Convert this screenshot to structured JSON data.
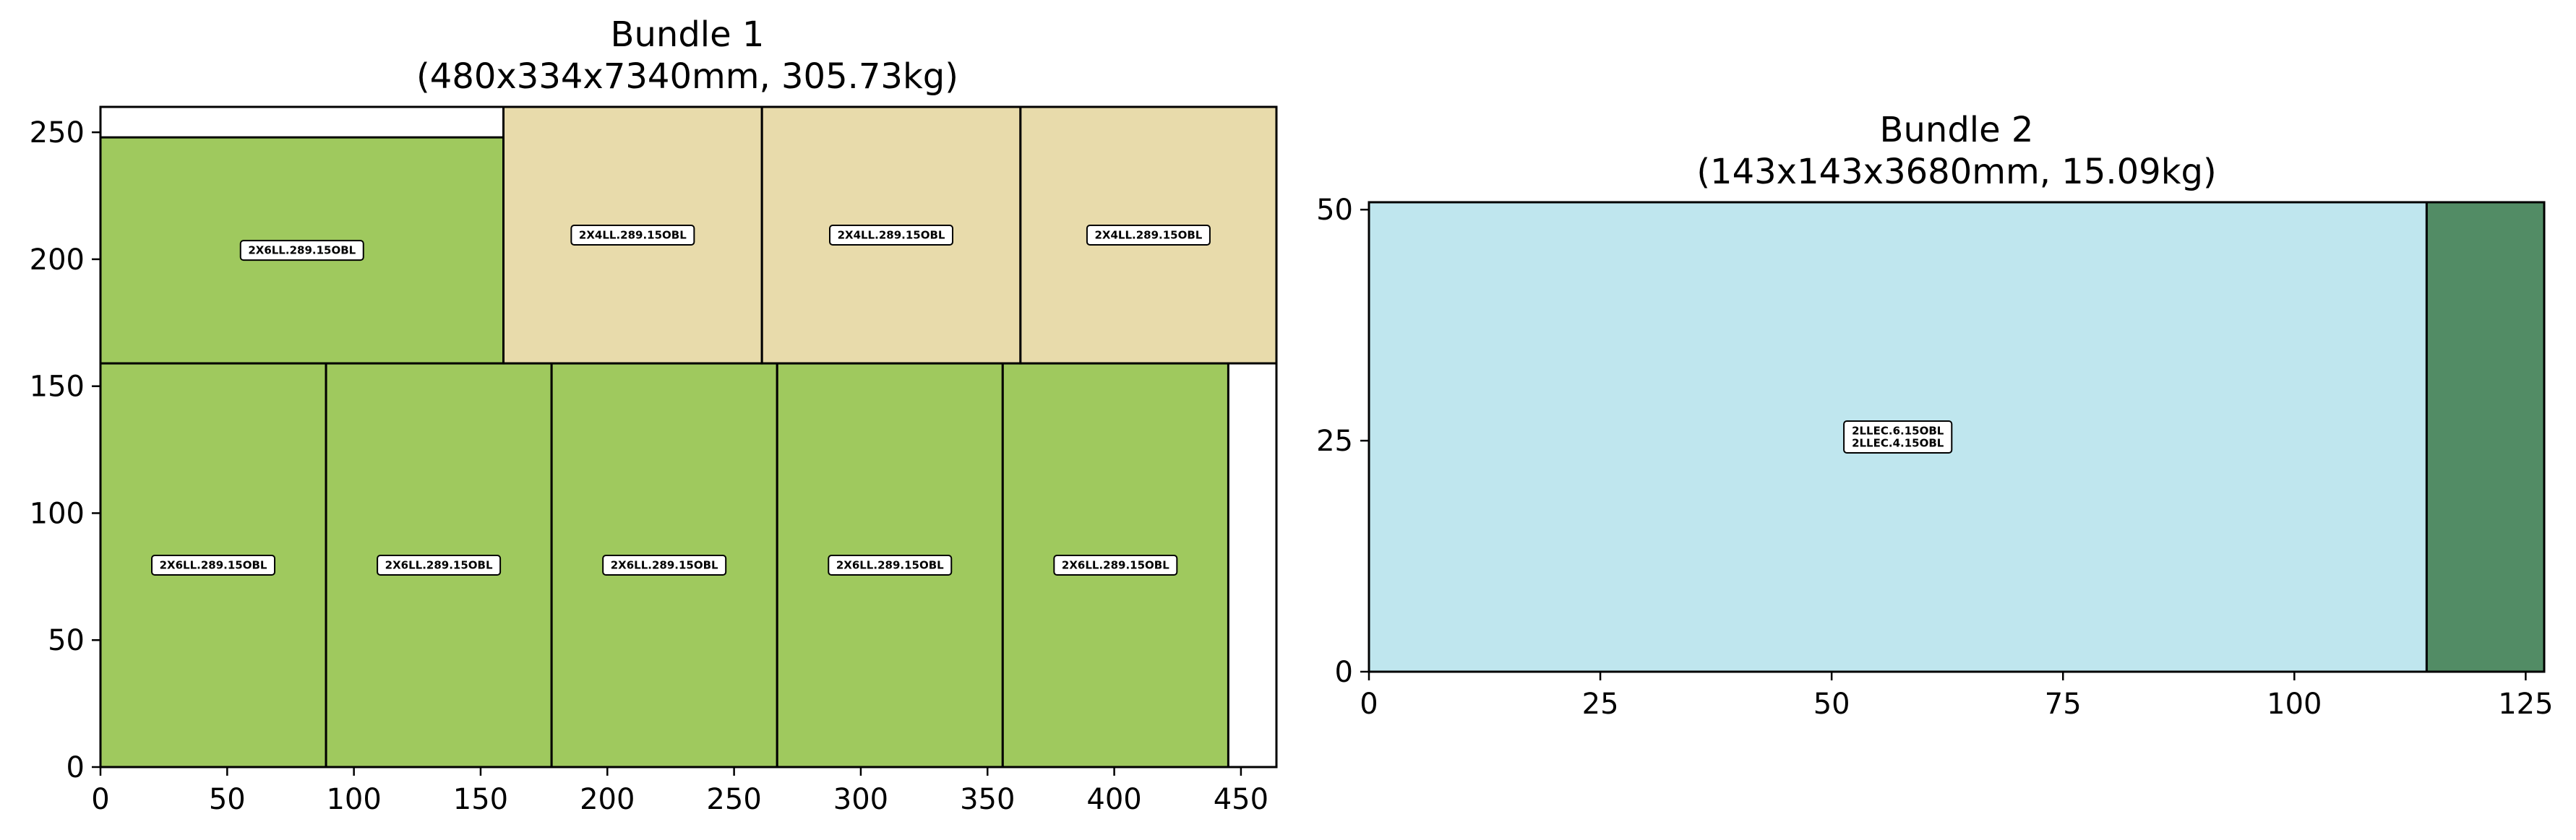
{
  "chart_data": [
    {
      "type": "rectangles",
      "title_line1": "Bundle 1",
      "title_line2": "(480x334x7340mm, 305.73kg)",
      "xlabel": "",
      "ylabel": "",
      "xlim": [
        0,
        464
      ],
      "ylim": [
        0,
        260
      ],
      "xticks": [
        0,
        50,
        100,
        150,
        200,
        250,
        300,
        350,
        400,
        450
      ],
      "yticks": [
        0,
        50,
        100,
        150,
        200,
        250
      ],
      "grid": false,
      "rects": [
        {
          "x": 0,
          "y": 0,
          "w": 89,
          "h": 159,
          "color": "#9fc95e",
          "labels": [
            "2X6LL.289.15OBL"
          ]
        },
        {
          "x": 89,
          "y": 0,
          "w": 89,
          "h": 159,
          "color": "#9fc95e",
          "labels": [
            "2X6LL.289.15OBL"
          ]
        },
        {
          "x": 178,
          "y": 0,
          "w": 89,
          "h": 159,
          "color": "#9fc95e",
          "labels": [
            "2X6LL.289.15OBL"
          ]
        },
        {
          "x": 267,
          "y": 0,
          "w": 89,
          "h": 159,
          "color": "#9fc95e",
          "labels": [
            "2X6LL.289.15OBL"
          ]
        },
        {
          "x": 356,
          "y": 0,
          "w": 89,
          "h": 159,
          "color": "#9fc95e",
          "labels": [
            "2X6LL.289.15OBL"
          ]
        },
        {
          "x": 0,
          "y": 159,
          "w": 159,
          "h": 89,
          "color": "#9fc95e",
          "labels": [
            "2X6LL.289.15OBL"
          ]
        },
        {
          "x": 159,
          "y": 159,
          "w": 102,
          "h": 101,
          "color": "#e8dbab",
          "labels": [
            "2X4LL.289.15OBL"
          ]
        },
        {
          "x": 261,
          "y": 159,
          "w": 102,
          "h": 101,
          "color": "#e8dbab",
          "labels": [
            "2X4LL.289.15OBL"
          ]
        },
        {
          "x": 363,
          "y": 159,
          "w": 101,
          "h": 101,
          "color": "#e8dbab",
          "labels": [
            "2X4LL.289.15OBL"
          ]
        }
      ]
    },
    {
      "type": "rectangles",
      "title_line1": "Bundle 2",
      "title_line2": "(143x143x3680mm, 15.09kg)",
      "xlabel": "",
      "ylabel": "",
      "xlim": [
        0,
        127
      ],
      "ylim": [
        0,
        50.8
      ],
      "xticks": [
        0,
        25,
        50,
        75,
        100,
        125
      ],
      "yticks": [
        0,
        25,
        50
      ],
      "grid": false,
      "rects": [
        {
          "x": 0,
          "y": 0,
          "w": 114.3,
          "h": 50.8,
          "color": "#bfe6ee",
          "labels": [
            "2LLEC.6.15OBL",
            "2LLEC.4.15OBL"
          ]
        },
        {
          "x": 114.3,
          "y": 0,
          "w": 12.7,
          "h": 50.8,
          "color": "#528c65",
          "labels": []
        }
      ]
    }
  ]
}
